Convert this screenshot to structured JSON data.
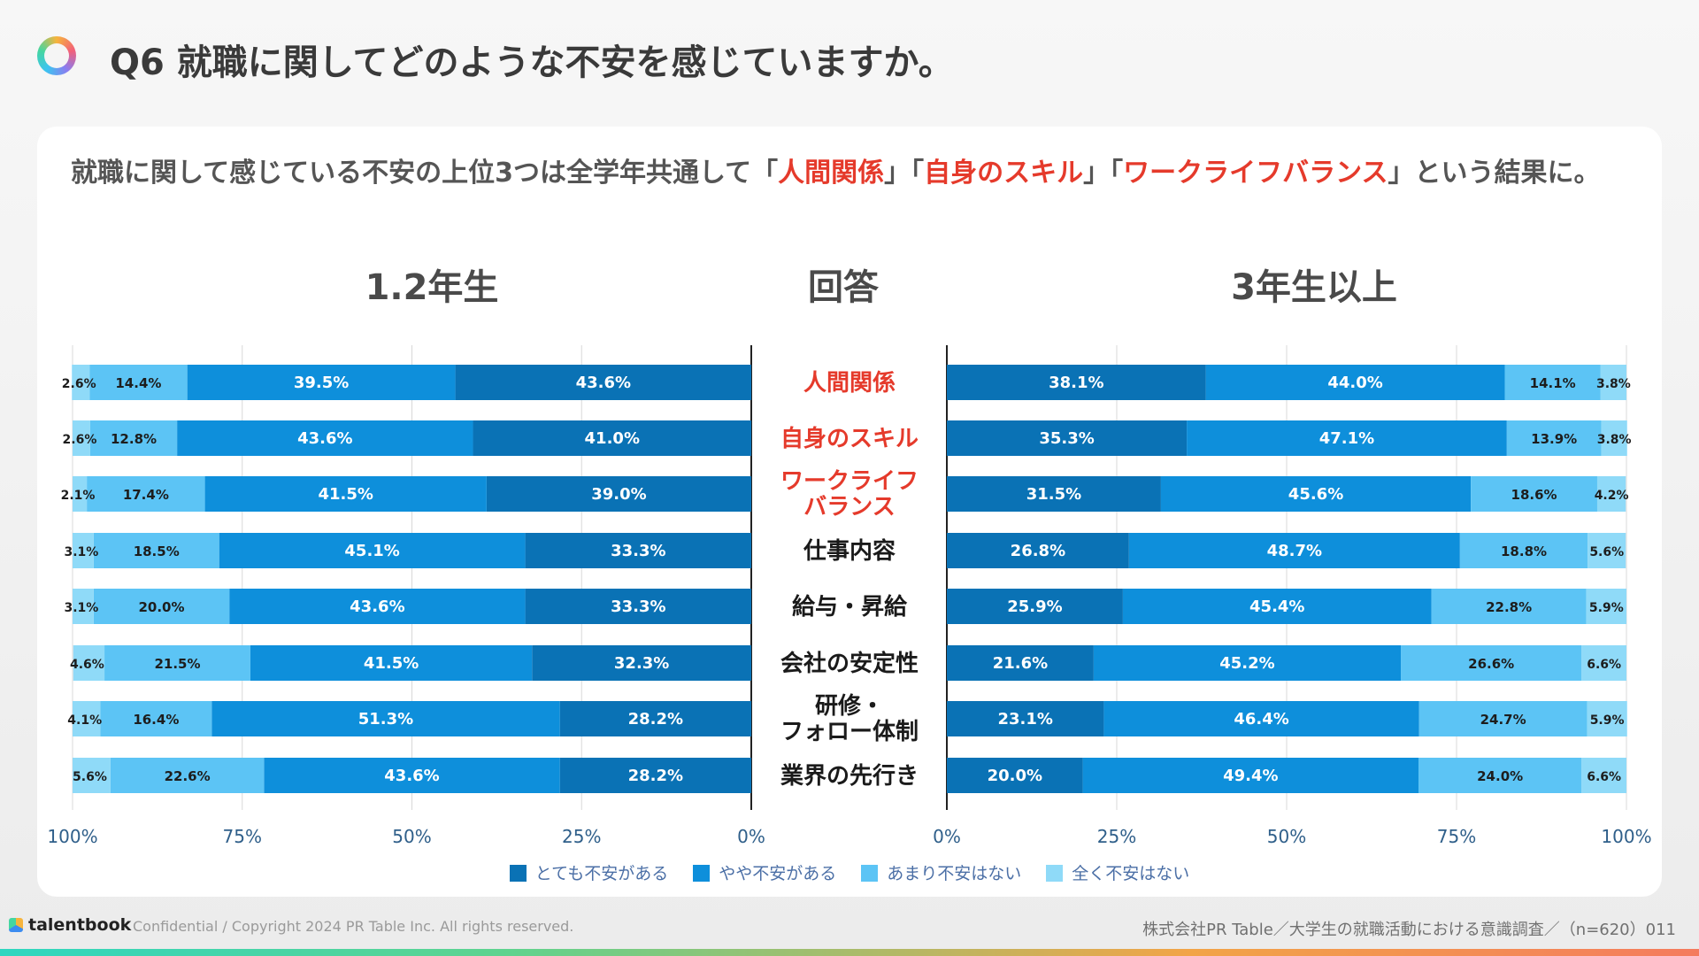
{
  "page": {
    "title": "Q6 就職に関してどのような不安を感じていますか。",
    "subtitle_parts": [
      {
        "text": "就職に関して感じている不安の上位3つは全学年共通して「",
        "highlight": false
      },
      {
        "text": "人間関係",
        "highlight": true
      },
      {
        "text": "」「",
        "highlight": false
      },
      {
        "text": "自身のスキル",
        "highlight": true
      },
      {
        "text": "」「",
        "highlight": false
      },
      {
        "text": "ワークライフバランス",
        "highlight": true
      },
      {
        "text": "」という結果に。",
        "highlight": false
      }
    ],
    "highlight_color": "#e53a2b"
  },
  "footer": {
    "brand": "talentbook",
    "copyright": "Confidential / Copyright 2024 PR Table Inc. All rights reserved.",
    "source": "株式会社PR Table／大学生の就職活動における意識調査／（n=620）011"
  },
  "chart_data": {
    "type": "bar",
    "orientation": "horizontal-stacked-100",
    "column_titles": {
      "left": "1.2年生",
      "center": "回答",
      "right": "3年生以上"
    },
    "categories": [
      "人間関係",
      "自身のスキル",
      "ワークライフ\nバランス",
      "仕事内容",
      "給与・昇給",
      "会社の安定性",
      "研修・\nフォロー体制",
      "業界の先行き"
    ],
    "category_highlight": [
      true,
      true,
      true,
      false,
      false,
      false,
      false,
      false
    ],
    "series_names": [
      "とても不安がある",
      "やや不安がある",
      "あまり不安はない",
      "全く不安はない"
    ],
    "series_colors": [
      "#0a72b5",
      "#0e8fdb",
      "#5cc4f5",
      "#8fdaf8"
    ],
    "left_panel": {
      "label": "1.2年生",
      "axis_direction": "reversed",
      "values": [
        [
          43.6,
          39.5,
          14.4,
          2.6
        ],
        [
          41.0,
          43.6,
          12.8,
          2.6
        ],
        [
          39.0,
          41.5,
          17.4,
          2.1
        ],
        [
          33.3,
          45.1,
          18.5,
          3.1
        ],
        [
          33.3,
          43.6,
          20.0,
          3.1
        ],
        [
          32.3,
          41.5,
          21.5,
          4.6
        ],
        [
          28.2,
          51.3,
          16.4,
          4.1
        ],
        [
          28.2,
          43.6,
          22.6,
          5.6
        ]
      ],
      "ticks": [
        "100%",
        "75%",
        "50%",
        "25%",
        "0%"
      ]
    },
    "right_panel": {
      "label": "3年生以上",
      "axis_direction": "normal",
      "values": [
        [
          38.1,
          44.0,
          14.1,
          3.8
        ],
        [
          35.3,
          47.1,
          13.9,
          3.8
        ],
        [
          31.5,
          45.6,
          18.6,
          4.2
        ],
        [
          26.8,
          48.7,
          18.8,
          5.6
        ],
        [
          25.9,
          45.4,
          22.8,
          5.9
        ],
        [
          21.6,
          45.2,
          26.6,
          6.6
        ],
        [
          23.1,
          46.4,
          24.7,
          5.9
        ],
        [
          20.0,
          49.4,
          24.0,
          6.6
        ]
      ],
      "ticks": [
        "0%",
        "25%",
        "50%",
        "75%",
        "100%"
      ]
    },
    "xlim": [
      0,
      100
    ],
    "legend_position": "bottom-center",
    "grid": true
  }
}
